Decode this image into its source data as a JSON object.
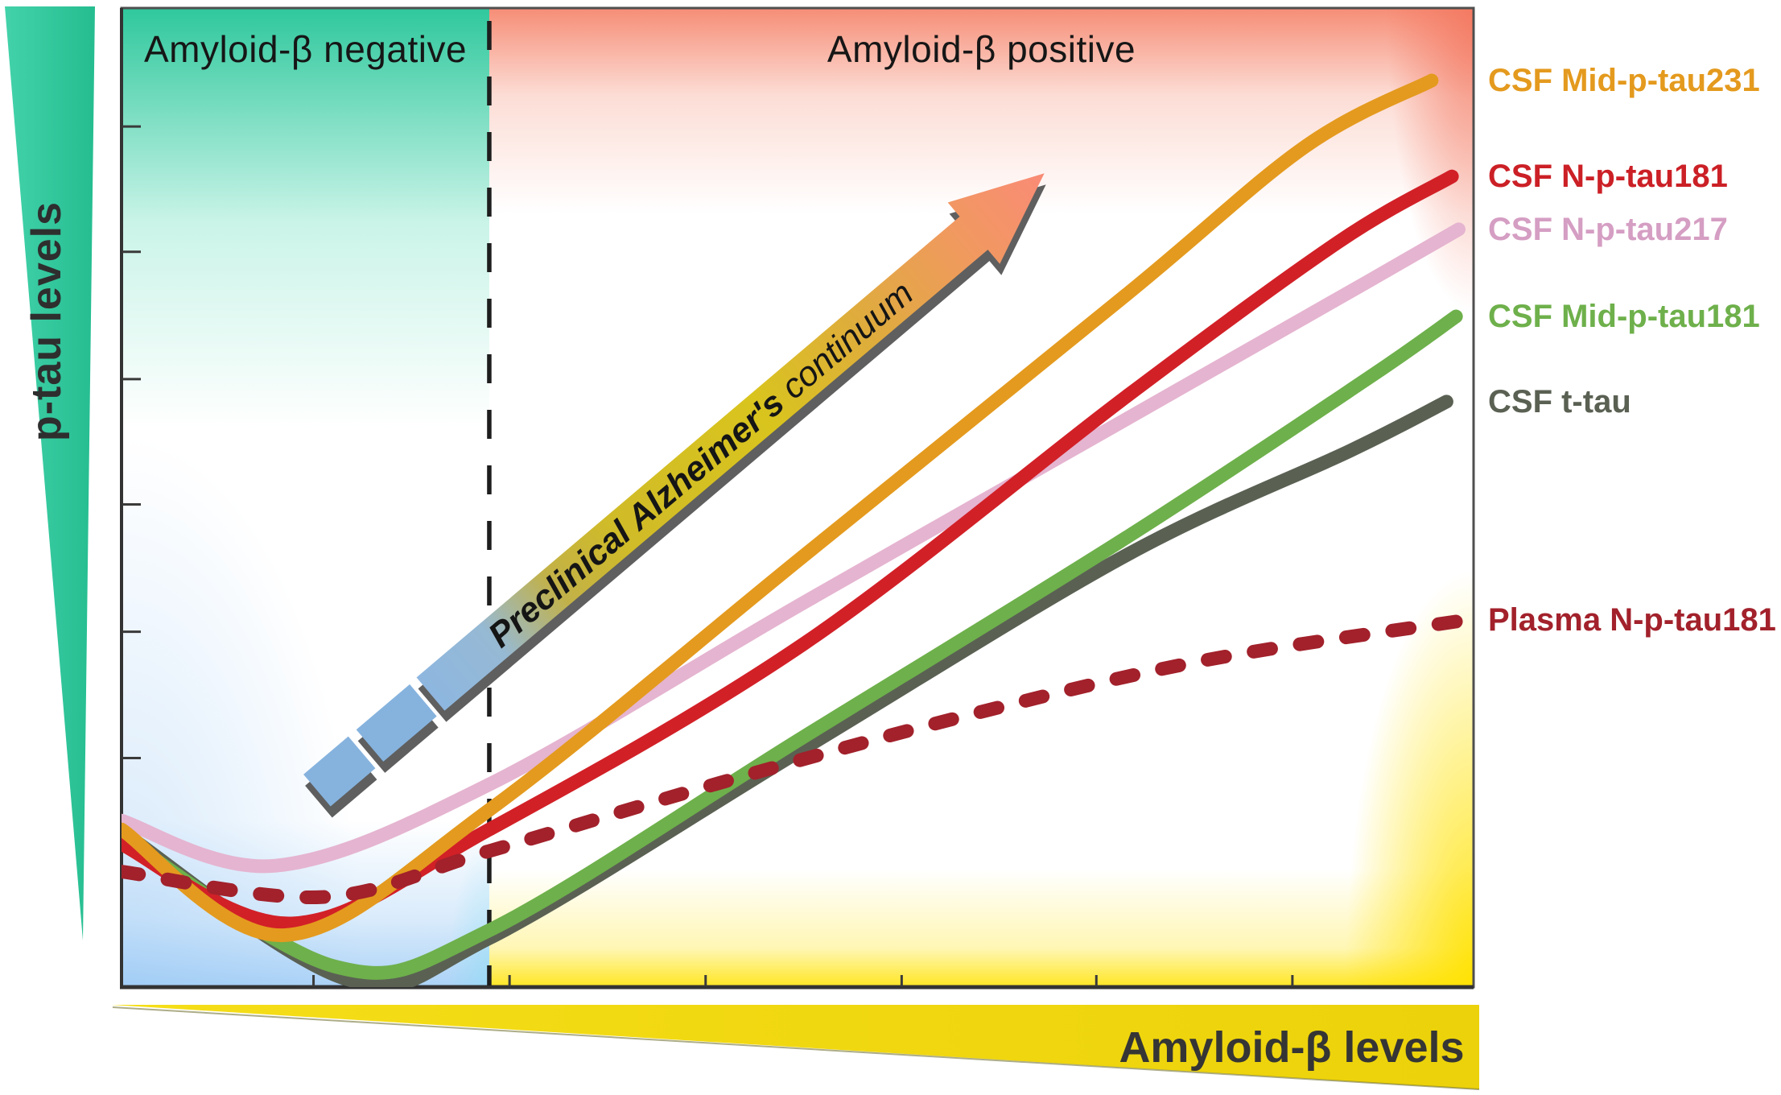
{
  "figure": {
    "y_axis_label": "p-tau levels",
    "x_axis_label": "Amyloid-β levels",
    "region_negative": "Amyloid-β negative",
    "region_positive": "Amyloid-β positive",
    "arrow": {
      "bold_text": "Preclinical Alzheimer's",
      "italic_text": " continuum"
    }
  },
  "chart_data": {
    "type": "line",
    "title": "",
    "xlabel": "Amyloid-β levels",
    "ylabel": "p-tau levels",
    "grid": false,
    "legend_position": "right-outside",
    "x_axis": {
      "label": "Amyloid-β levels",
      "direction": "decreasing-rightward",
      "numeric_labels": false,
      "tick_positions": [
        0.142,
        0.287,
        0.432,
        0.577,
        0.721,
        0.866
      ],
      "tick_labels": []
    },
    "y_axis": {
      "label": "p-tau levels",
      "direction": "increasing-upward",
      "numeric_labels": false,
      "tick_positions": [
        0.234,
        0.363,
        0.493,
        0.621,
        0.751,
        0.879
      ],
      "tick_labels": []
    },
    "regions": [
      {
        "label": "Amyloid-β negative",
        "from": 0,
        "to": 0.272
      },
      {
        "label": "Amyloid-β positive",
        "from": 0.272,
        "to": 1
      }
    ],
    "series": [
      {
        "name": "CSF t-tau",
        "color": "#5A6153",
        "style": "solid",
        "width": 17,
        "label_v": 0.598,
        "points": [
          [
            0,
            0.159
          ],
          [
            0.167,
            0.008
          ],
          [
            0.272,
            0.05
          ],
          [
            0.505,
            0.244
          ],
          [
            0.743,
            0.441
          ],
          [
            0.909,
            0.548
          ],
          [
            0.98,
            0.598
          ]
        ]
      },
      {
        "name": "CSF Mid-p-tau181",
        "color": "#6EB04B",
        "style": "solid",
        "width": 17,
        "label_v": 0.685,
        "points": [
          [
            0,
            0.154
          ],
          [
            0.158,
            0.021
          ],
          [
            0.272,
            0.058
          ],
          [
            0.505,
            0.256
          ],
          [
            0.743,
            0.459
          ],
          [
            0.921,
            0.621
          ],
          [
            0.987,
            0.685
          ]
        ]
      },
      {
        "name": "CSF N-p-tau217",
        "color": "#E5B4D0",
        "style": "solid",
        "width": 17,
        "label_color": "#D59EC3",
        "label_v": 0.774,
        "points": [
          [
            0,
            0.17
          ],
          [
            0.114,
            0.124
          ],
          [
            0.272,
            0.207
          ],
          [
            0.505,
            0.393
          ],
          [
            0.743,
            0.58
          ],
          [
            0.921,
            0.72
          ],
          [
            0.989,
            0.774
          ]
        ]
      },
      {
        "name": "CSF N-p-tau181",
        "color": "#D22027",
        "style": "solid",
        "width": 17,
        "label_color": "#CB2026",
        "label_v": 0.828,
        "points": [
          [
            0,
            0.146
          ],
          [
            0.126,
            0.065
          ],
          [
            0.272,
            0.161
          ],
          [
            0.505,
            0.351
          ],
          [
            0.743,
            0.603
          ],
          [
            0.9,
            0.761
          ],
          [
            0.984,
            0.828
          ]
        ]
      },
      {
        "name": "CSF Mid-p-tau231",
        "color": "#E49A1E",
        "style": "solid",
        "width": 17,
        "label_v": 0.926,
        "points": [
          [
            0,
            0.161
          ],
          [
            0.12,
            0.053
          ],
          [
            0.272,
            0.181
          ],
          [
            0.505,
            0.441
          ],
          [
            0.743,
            0.707
          ],
          [
            0.876,
            0.859
          ],
          [
            0.969,
            0.926
          ]
        ]
      },
      {
        "name": "Plasma N-p-tau181",
        "color": "#A2212B",
        "style": "dashed",
        "dash": "22 36",
        "width": 17,
        "label_v": 0.375,
        "points": [
          [
            0,
            0.118
          ],
          [
            0.149,
            0.092
          ],
          [
            0.272,
            0.139
          ],
          [
            0.446,
            0.21
          ],
          [
            0.624,
            0.277
          ],
          [
            0.802,
            0.334
          ],
          [
            0.995,
            0.375
          ]
        ]
      }
    ],
    "annotations": [
      {
        "type": "arrow",
        "text": "Preclinical Alzheimer's continuum",
        "from_uv": [
          0.229,
          0.299
        ],
        "to_uv": [
          0.68,
          0.828
        ],
        "gradient": [
          "#8CB6E2",
          "#CFBA2A",
          "#D9C41E",
          "#DFAC3D",
          "#F88B76"
        ]
      },
      {
        "type": "dashed-vline",
        "u": 0.272
      }
    ]
  },
  "colors": {
    "ptau_wedge": "#2EC69B",
    "amyloid_wedge": "#F1D70E",
    "negative_zone_top": "#2FC89D",
    "negative_zone_bottom": "#9CC8F2",
    "positive_zone_top": "#F68D76",
    "positive_zone_bottom": "#FFE202",
    "axis": "#3A3A3A",
    "arrow_head": "#F88B76",
    "arrow_tail": "#86B3DE"
  }
}
